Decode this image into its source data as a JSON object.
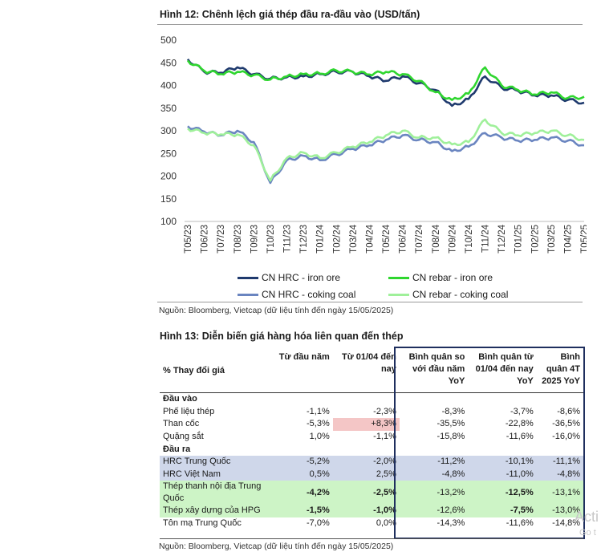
{
  "figure12": {
    "title": "Hình 12: Chênh lệch giá thép đầu ra-đầu vào (USD/tấn)",
    "source": "Nguồn: Bloomberg, Vietcap (dữ liệu tính đến ngày 15/05/2025)"
  },
  "chart_data": {
    "type": "line",
    "title": "Hình 12: Chênh lệch giá thép đầu ra-đầu vào (USD/tấn)",
    "xlabel": "",
    "ylabel": "",
    "ylim": [
      100,
      500
    ],
    "yticks": [
      100,
      150,
      200,
      250,
      300,
      350,
      400,
      450,
      500
    ],
    "grid": false,
    "legend_position": "bottom",
    "x": [
      "T05/23",
      "T06/23",
      "T07/23",
      "T08/23",
      "T09/23",
      "T10/23",
      "T11/23",
      "T12/23",
      "T01/24",
      "T02/24",
      "T03/24",
      "T04/24",
      "T05/24",
      "T06/24",
      "T07/24",
      "T08/24",
      "T09/24",
      "T10/24",
      "T11/24",
      "T12/24",
      "T01/25",
      "T02/25",
      "T03/25",
      "T04/25",
      "T05/25"
    ],
    "series": [
      {
        "name": "CN HRC - iron ore",
        "color": "#1f3a6e",
        "values": [
          458,
          430,
          428,
          440,
          425,
          415,
          418,
          420,
          425,
          430,
          430,
          420,
          410,
          420,
          405,
          390,
          355,
          370,
          420,
          395,
          388,
          378,
          378,
          368,
          362
        ]
      },
      {
        "name": "CN rebar - iron ore",
        "color": "#2fd62f",
        "values": [
          455,
          432,
          425,
          430,
          423,
          413,
          420,
          425,
          426,
          433,
          430,
          424,
          430,
          425,
          410,
          385,
          368,
          382,
          440,
          400,
          390,
          380,
          385,
          372,
          375
        ]
      },
      {
        "name": "CN HRC - coking coal",
        "color": "#6a85c0",
        "values": [
          310,
          298,
          290,
          300,
          275,
          185,
          235,
          245,
          235,
          248,
          260,
          268,
          280,
          290,
          280,
          275,
          255,
          265,
          295,
          285,
          278,
          280,
          285,
          278,
          268
        ]
      },
      {
        "name": "CN rebar - coking coal",
        "color": "#9ff09a",
        "values": [
          305,
          295,
          292,
          292,
          268,
          190,
          240,
          252,
          240,
          252,
          265,
          275,
          290,
          300,
          285,
          285,
          270,
          275,
          325,
          295,
          290,
          295,
          300,
          290,
          280
        ]
      }
    ]
  },
  "figure13": {
    "title": "Hình 13: Diễn biến giá hàng hóa liên quan đến thép",
    "source": "Nguồn: Bloomberg, Vietcap (dữ liệu tính đến ngày 15/05/2025)",
    "headers": [
      "% Thay đổi giá",
      "Từ đầu năm",
      "Từ 01/04 đến nay",
      "Bình quân so với đầu năm YoY",
      "Bình quân từ 01/04 đến nay YoY",
      "Bình quân 4T 2025 YoY"
    ],
    "sections": [
      {
        "label": "Đầu vào",
        "rows": [
          {
            "label": "Phế liệu thép",
            "values": [
              "-1,1%",
              "-2,3%",
              "-8,3%",
              "-3,7%",
              "-8,6%"
            ],
            "hl": "",
            "bold": [],
            "pink": -1
          },
          {
            "label": "Than cốc",
            "values": [
              "-5,3%",
              "+8,3%",
              "-35,5%",
              "-22,8%",
              "-36,5%"
            ],
            "hl": "",
            "bold": [],
            "pink": 1
          },
          {
            "label": "Quặng sắt",
            "values": [
              "1,0%",
              "-1,1%",
              "-15,8%",
              "-11,6%",
              "-16,0%"
            ],
            "hl": "",
            "bold": [],
            "pink": -1
          }
        ]
      },
      {
        "label": "Đầu ra",
        "rows": [
          {
            "label": "HRC Trung Quốc",
            "values": [
              "-5,2%",
              "-2,0%",
              "-11,2%",
              "-10,1%",
              "-11,1%"
            ],
            "hl": "blue",
            "bold": [],
            "pink": -1
          },
          {
            "label": "HRC Việt Nam",
            "values": [
              "0,5%",
              "2,5%",
              "-4,8%",
              "-11,0%",
              "-4,8%"
            ],
            "hl": "blue",
            "bold": [],
            "pink": -1
          },
          {
            "label": "Thép thanh nội địa Trung Quốc",
            "values": [
              "-4,2%",
              "-2,5%",
              "-13,2%",
              "-12,5%",
              "-13,1%"
            ],
            "hl": "green",
            "bold": [
              0,
              1,
              3
            ],
            "pink": -1
          },
          {
            "label": "Thép xây dựng của HPG",
            "values": [
              "-1,5%",
              "-1,0%",
              "-12,6%",
              "-7,5%",
              "-13,0%"
            ],
            "hl": "green",
            "bold": [
              0,
              1,
              3
            ],
            "pink": -1
          },
          {
            "label": "Tôn mạ Trung Quốc",
            "values": [
              "-7,0%",
              "0,0%",
              "-14,3%",
              "-11,6%",
              "-14,8%"
            ],
            "hl": "",
            "bold": [],
            "pink": -1
          }
        ]
      }
    ]
  },
  "watermark": {
    "line1": "Acti",
    "line2": "Go t"
  }
}
